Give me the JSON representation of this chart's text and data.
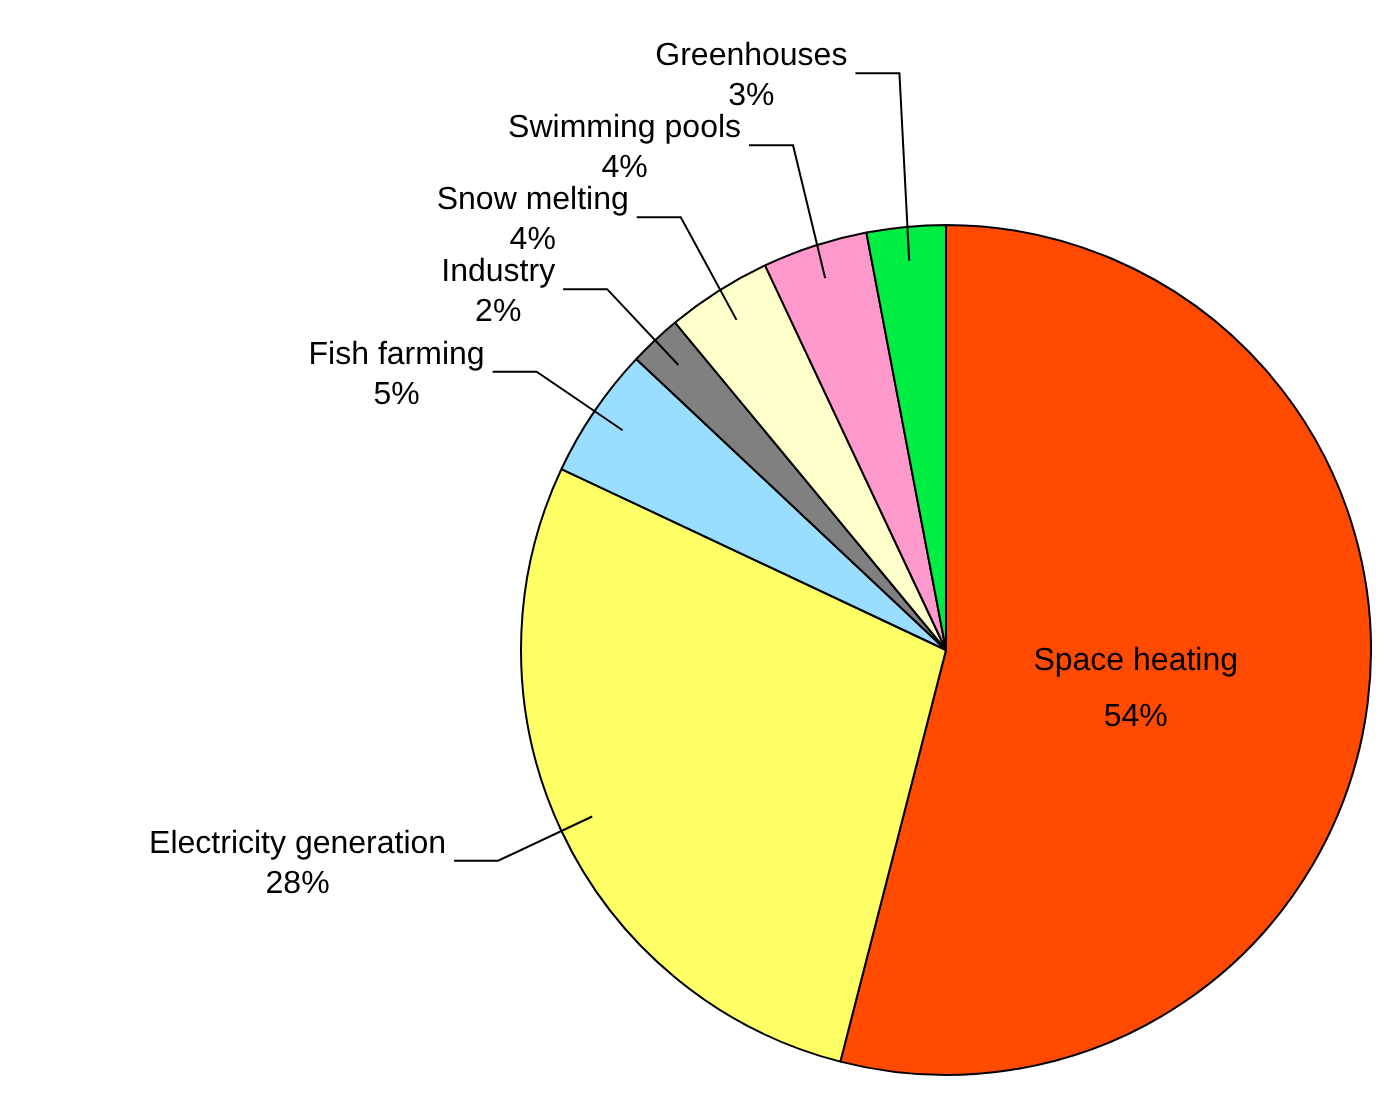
{
  "chart_data": {
    "type": "pie",
    "categories": [
      "Space heating",
      "Electricity generation",
      "Fish farming",
      "Industry",
      "Snow melting",
      "Swimming pools",
      "Greenhouses"
    ],
    "values": [
      54,
      28,
      5,
      2,
      4,
      4,
      3
    ],
    "value_labels": [
      "54%",
      "28%",
      "5%",
      "2%",
      "4%",
      "4%",
      "3%"
    ],
    "colors": [
      "#ff4a00",
      "#ffff66",
      "#99ddff",
      "#808080",
      "#ffffcc",
      "#ff99cc",
      "#00ee44"
    ],
    "legend": false
  }
}
